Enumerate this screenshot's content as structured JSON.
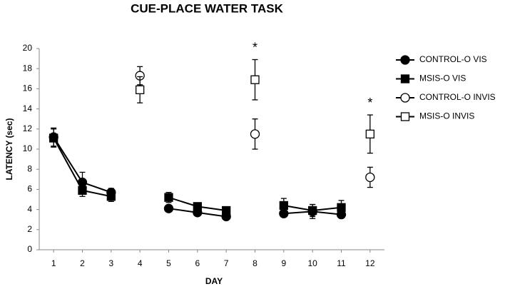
{
  "chart_data": {
    "type": "line",
    "title": "CUE-PLACE WATER TASK",
    "x_label": "DAY",
    "y_label": "LATENCY (sec)",
    "x": [
      1,
      2,
      3,
      4,
      5,
      6,
      7,
      8,
      9,
      10,
      11,
      12
    ],
    "xlim": [
      0.5,
      12.5
    ],
    "xticks": [
      1,
      2,
      3,
      4,
      5,
      6,
      7,
      8,
      9,
      10,
      11,
      12
    ],
    "ylim": [
      0,
      20
    ],
    "yticks": [
      0,
      2,
      4,
      6,
      8,
      10,
      12,
      14,
      16,
      18,
      20
    ],
    "grid": false,
    "legend": "right",
    "series": [
      {
        "name": "CONTROL-O VIS",
        "color": "#000000",
        "marker": "circle",
        "fill": "#000000",
        "values": [
          11.2,
          6.7,
          5.7,
          null,
          4.1,
          3.7,
          3.3,
          null,
          3.6,
          3.8,
          3.5,
          null
        ],
        "errors": [
          0.9,
          1.0,
          0.4,
          null,
          0.2,
          0.3,
          0.2,
          null,
          0.2,
          0.7,
          0.3,
          null
        ]
      },
      {
        "name": "MSIS-O VIS",
        "color": "#000000",
        "marker": "square",
        "fill": "#000000",
        "values": [
          11.1,
          5.9,
          5.3,
          null,
          5.2,
          4.3,
          3.9,
          null,
          4.4,
          3.9,
          4.2,
          null
        ],
        "errors": [
          0.9,
          0.6,
          0.5,
          null,
          0.5,
          0.3,
          0.3,
          null,
          0.7,
          0.6,
          0.7,
          null
        ]
      },
      {
        "name": "CONTROL-O INVIS",
        "color": "#000000",
        "marker": "circle",
        "fill": "#ffffff",
        "values": [
          null,
          null,
          null,
          17.3,
          null,
          null,
          null,
          11.5,
          null,
          null,
          null,
          7.2
        ],
        "errors": [
          null,
          null,
          null,
          0.9,
          null,
          null,
          null,
          1.5,
          null,
          null,
          null,
          1.0
        ]
      },
      {
        "name": "MSIS-O INVIS",
        "color": "#000000",
        "marker": "square",
        "fill": "#ffffff",
        "values": [
          null,
          null,
          null,
          15.9,
          null,
          null,
          null,
          16.9,
          null,
          null,
          null,
          11.5
        ],
        "errors": [
          null,
          null,
          null,
          1.3,
          null,
          null,
          null,
          2.0,
          null,
          null,
          null,
          1.9
        ]
      }
    ],
    "annotations": [
      {
        "text": "*",
        "x": 8
      },
      {
        "text": "*",
        "x": 12
      }
    ]
  }
}
